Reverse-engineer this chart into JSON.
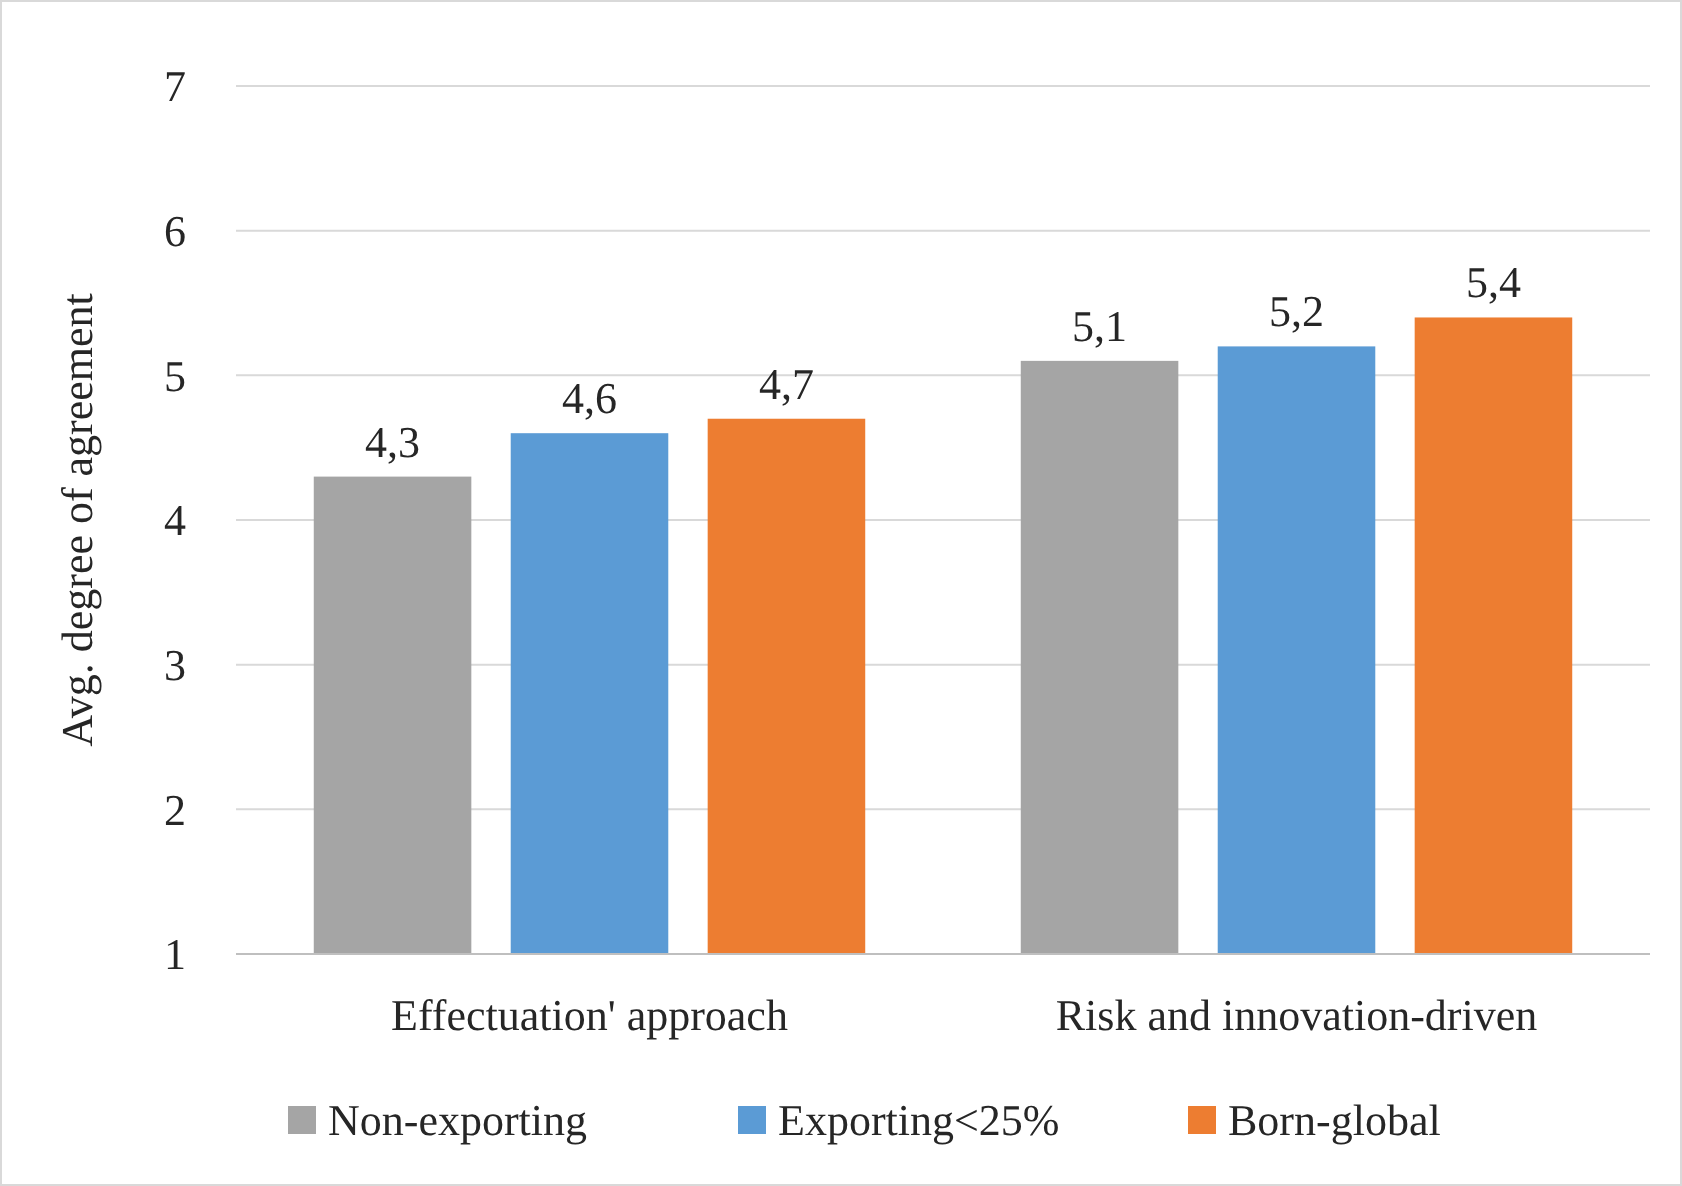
{
  "chart_data": {
    "type": "bar",
    "ylabel": "Avg. degree of agreement",
    "categories": [
      "Effectuation' approach",
      "Risk and innovation-driven"
    ],
    "series": [
      {
        "name": "Non-exporting",
        "color": "#a5a5a5",
        "values": [
          4.3,
          5.1
        ],
        "value_labels": [
          "4,3",
          "5,1"
        ]
      },
      {
        "name": "Exporting<25%",
        "color": "#5b9bd5",
        "values": [
          4.6,
          5.2
        ],
        "value_labels": [
          "4,6",
          "5,2"
        ]
      },
      {
        "name": "Born-global",
        "color": "#ed7d31",
        "values": [
          4.7,
          5.4
        ],
        "value_labels": [
          "4,7",
          "5,4"
        ]
      }
    ],
    "ylim": [
      1,
      7
    ],
    "yticks": [
      1,
      2,
      3,
      4,
      5,
      6,
      7
    ],
    "grid": "y",
    "legend": "bottom"
  }
}
